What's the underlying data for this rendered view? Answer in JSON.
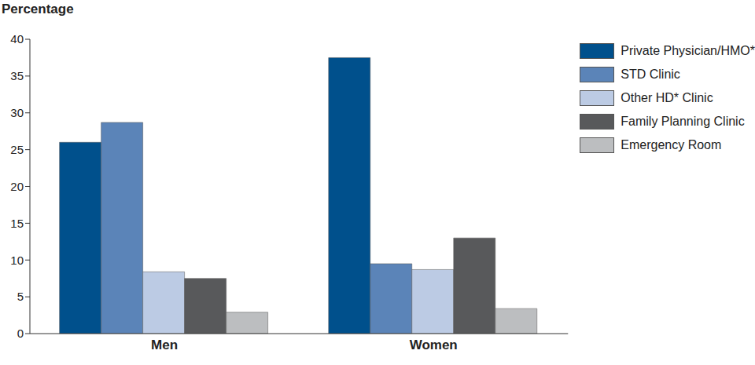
{
  "chart_data": {
    "type": "bar",
    "y_label": "Percentage",
    "categories": [
      "Men",
      "Women"
    ],
    "series": [
      {
        "name": "Private Physician/HMO*",
        "color": "#00508c",
        "values": [
          26.0,
          37.5
        ]
      },
      {
        "name": "STD Clinic",
        "color": "#5b84b8",
        "values": [
          28.7,
          9.5
        ]
      },
      {
        "name": "Other HD* Clinic",
        "color": "#bccbe4",
        "values": [
          8.4,
          8.7
        ]
      },
      {
        "name": "Family Planning Clinic",
        "color": "#58595b",
        "values": [
          7.5,
          13.0
        ]
      },
      {
        "name": "Emergency Room",
        "color": "#bcbec0",
        "values": [
          2.9,
          3.4
        ]
      }
    ],
    "ylim": [
      0,
      40
    ],
    "yticks": [
      0,
      5,
      10,
      15,
      20,
      25,
      30,
      35,
      40
    ],
    "grid": false,
    "legend": "top-right"
  }
}
